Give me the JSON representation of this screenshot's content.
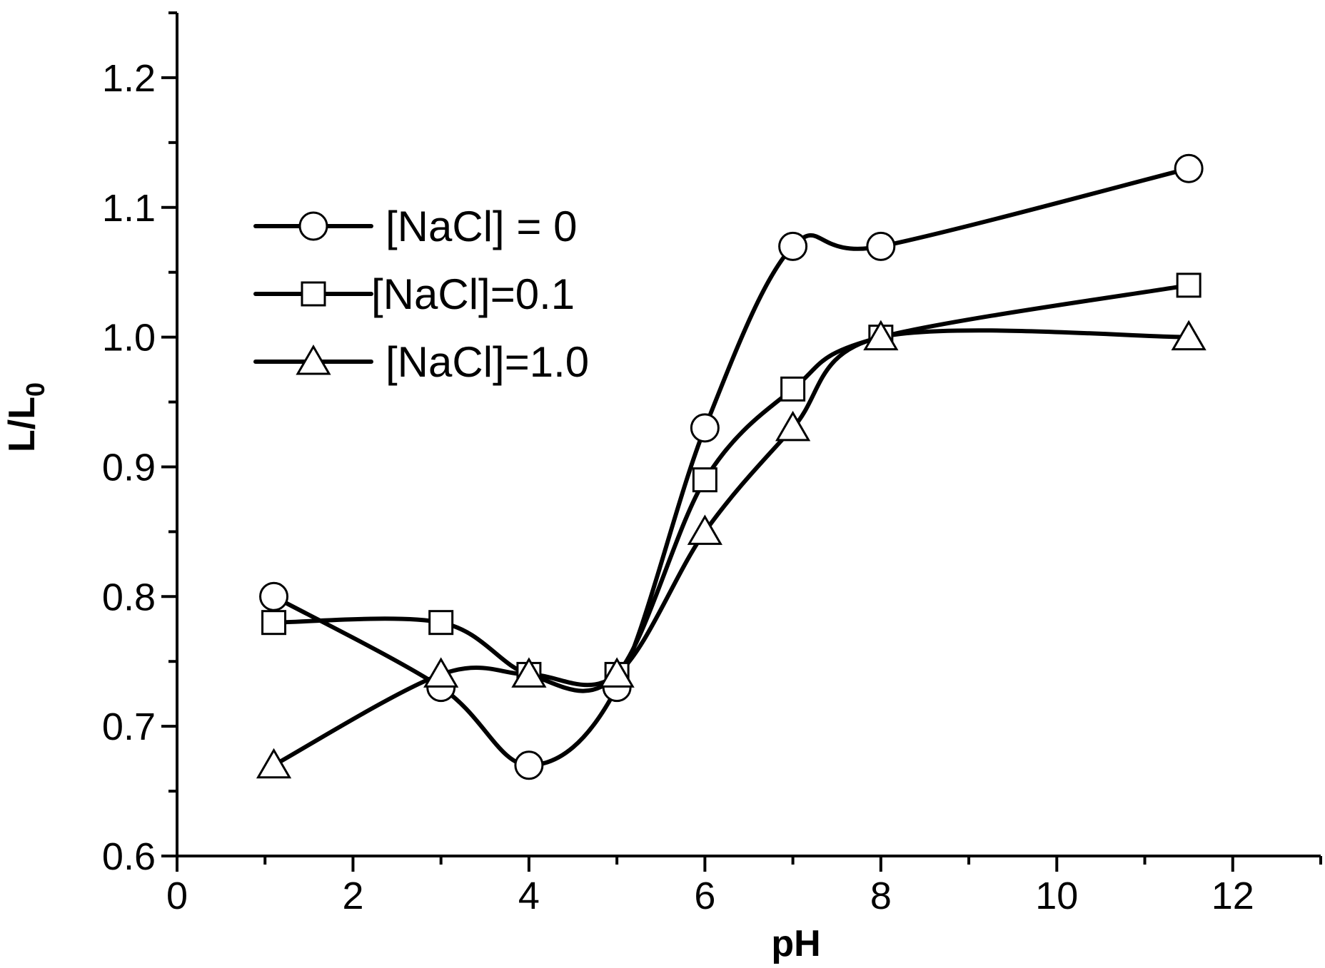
{
  "chart_data": {
    "type": "line",
    "title": "",
    "xlabel": "pH",
    "ylabel_main": "L/L",
    "ylabel_sub": "0",
    "xlim": [
      0,
      13
    ],
    "ylim": [
      0.6,
      1.25
    ],
    "xticks": [
      0,
      2,
      4,
      6,
      8,
      10,
      12
    ],
    "xtick_labels": [
      "0",
      "2",
      "4",
      "6",
      "8",
      "10",
      "12"
    ],
    "yticks": [
      0.6,
      0.7,
      0.8,
      0.9,
      1.0,
      1.1,
      1.2
    ],
    "ytick_labels": [
      "0.6",
      "0.7",
      "0.8",
      "0.9",
      "1.0",
      "1.1",
      "1.2"
    ],
    "grid": false,
    "legend_position": "upper-left",
    "series": [
      {
        "name": "[NaCl] = 0",
        "marker": "circle",
        "x": [
          1.1,
          3,
          4,
          5,
          6,
          7,
          8,
          11.5
        ],
        "values": [
          0.8,
          0.73,
          0.67,
          0.73,
          0.93,
          1.07,
          1.07,
          1.13
        ]
      },
      {
        "name": "[NaCl]=0.1",
        "marker": "square",
        "x": [
          1.1,
          3,
          4,
          5,
          6,
          7,
          8,
          11.5
        ],
        "values": [
          0.78,
          0.78,
          0.74,
          0.74,
          0.89,
          0.96,
          1.0,
          1.04
        ]
      },
      {
        "name": "[NaCl]=1.0",
        "marker": "triangle",
        "x": [
          1.1,
          3,
          4,
          5,
          6,
          7,
          8,
          11.5
        ],
        "values": [
          0.67,
          0.74,
          0.74,
          0.74,
          0.85,
          0.93,
          1.0,
          1.0
        ]
      }
    ]
  }
}
